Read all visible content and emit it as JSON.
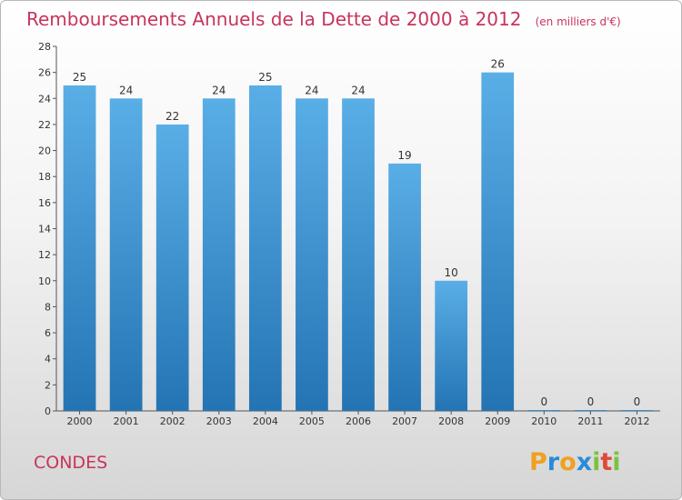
{
  "chart_data": {
    "type": "bar",
    "title": "Remboursements Annuels de la Dette de 2000 à 2012",
    "subtitle": "(en milliers d'€)",
    "categories": [
      "2000",
      "2001",
      "2002",
      "2003",
      "2004",
      "2005",
      "2006",
      "2007",
      "2008",
      "2009",
      "2010",
      "2011",
      "2012"
    ],
    "values": [
      25,
      24,
      22,
      24,
      25,
      24,
      24,
      19,
      10,
      26,
      0,
      0,
      0
    ],
    "data_labels": [
      "25",
      "24",
      "22",
      "24",
      "25",
      "24",
      "24",
      "19",
      "10",
      "26",
      "0",
      "0",
      "0"
    ],
    "ylim": [
      0,
      28
    ],
    "yticks": [
      0,
      2,
      4,
      6,
      8,
      10,
      12,
      14,
      16,
      18,
      20,
      22,
      24,
      26,
      28
    ],
    "ytick_labels": [
      "0",
      "2",
      "4",
      "6",
      "8",
      "10",
      "12",
      "14",
      "16",
      "18",
      "20",
      "22",
      "24",
      "26",
      "28"
    ],
    "xlabel": "",
    "ylabel": "",
    "grid": false,
    "bar_color_top": "#5aaee6",
    "bar_color_bottom": "#2474b4"
  },
  "commune": "CONDES",
  "brand": {
    "letters": [
      "P",
      "r",
      "o",
      "x",
      "i",
      "t",
      "i"
    ],
    "colors": [
      "#f0a020",
      "#2a8ad8",
      "#f0a020",
      "#2a8ad8",
      "#7cc242",
      "#e04a3a",
      "#7cc242"
    ]
  }
}
